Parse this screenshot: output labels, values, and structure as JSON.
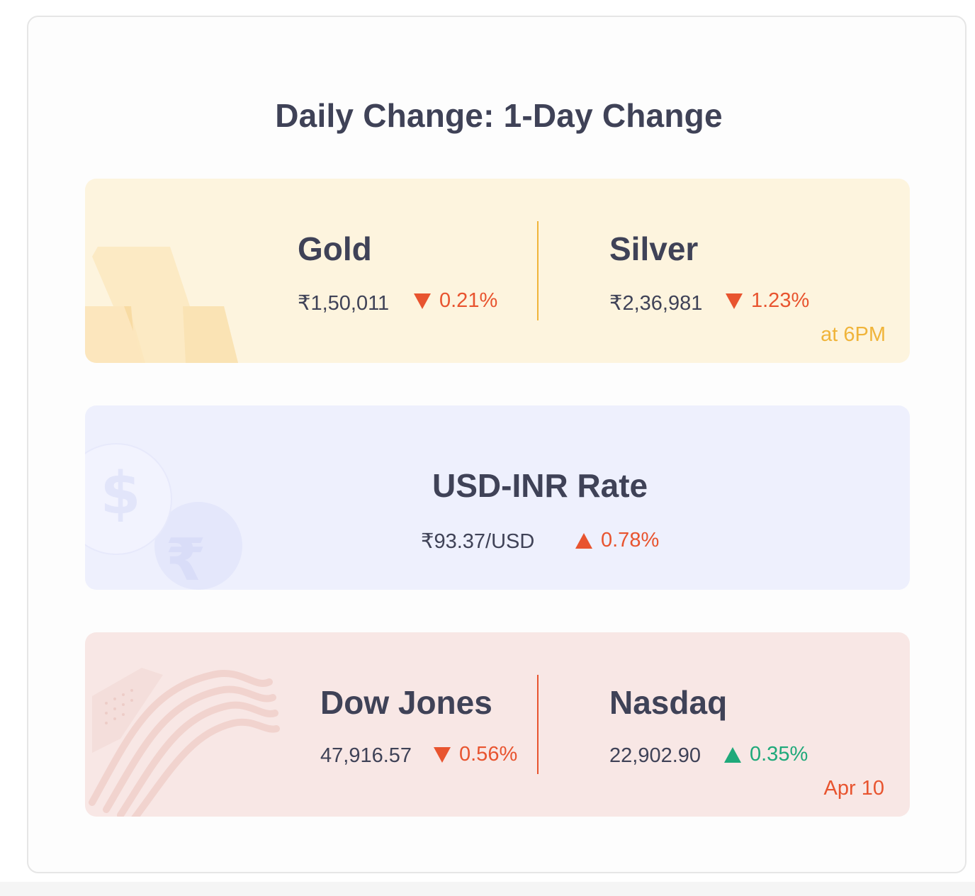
{
  "title": "Daily Change: 1-Day Change",
  "metals": {
    "gold": {
      "name": "Gold",
      "price": "₹1,50,011",
      "change": "0.21%",
      "direction": "down"
    },
    "silver": {
      "name": "Silver",
      "price": "₹2,36,981",
      "change": "1.23%",
      "direction": "down"
    },
    "timestamp": "at 6PM"
  },
  "fx": {
    "name": "USD-INR Rate",
    "price": "₹93.37/USD",
    "change": "0.78%",
    "direction": "up"
  },
  "us_markets": {
    "dow": {
      "name": "Dow Jones",
      "price": "47,916.57",
      "change": "0.56%",
      "direction": "down"
    },
    "nasdaq": {
      "name": "Nasdaq",
      "price": "22,902.90",
      "change": "0.35%",
      "direction": "up"
    },
    "timestamp": "Apr 10"
  },
  "colors": {
    "negative": "#e8542f",
    "positive": "#1fa97a",
    "gold_accent": "#f0b43a",
    "text": "#3f4257"
  },
  "icons": [
    "gold-bars-icon",
    "dollar-coin-icon",
    "rupee-coin-icon",
    "us-flag-icon",
    "down-triangle-icon",
    "up-triangle-icon"
  ]
}
